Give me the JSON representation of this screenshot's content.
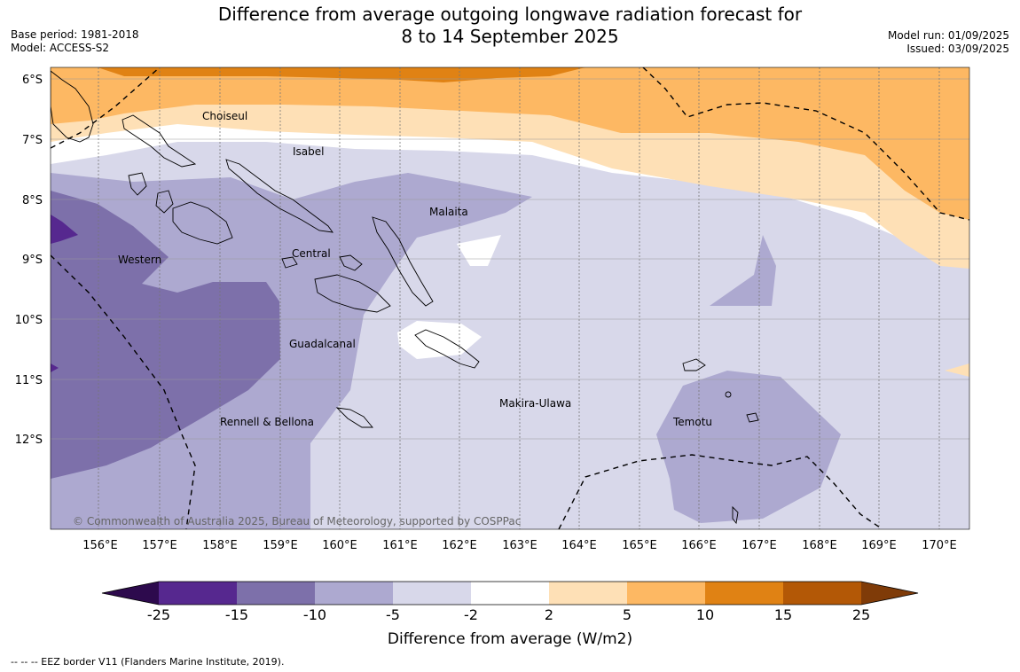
{
  "title_line1": "Difference from average outgoing longwave radiation forecast for",
  "title_line2": "8 to 14 September 2025",
  "base_period": "Base period: 1981-2018",
  "model": "Model: ACCESS-S2",
  "model_run": "Model run: 01/09/2025",
  "issued": "Issued: 03/09/2025",
  "copyright": "© Commonwealth of Australia 2025, Bureau of Meteorology, supported by COSPPac",
  "footnote": "--  --  -- EEZ border V11 (Flanders Marine Institute, 2019).",
  "lat_labels": [
    "6°S",
    "7°S",
    "8°S",
    "9°S",
    "10°S",
    "11°S",
    "12°S"
  ],
  "lon_labels": [
    "156°E",
    "157°E",
    "158°E",
    "159°E",
    "160°E",
    "161°E",
    "162°E",
    "163°E",
    "164°E",
    "165°E",
    "166°E",
    "167°E",
    "168°E",
    "169°E",
    "170°E"
  ],
  "provinces": [
    "Choiseul",
    "Isabel",
    "Malaita",
    "Western",
    "Central",
    "Guadalcanal",
    "Makira-Ulawa",
    "Rennell & Bellona",
    "Temotu"
  ],
  "colorbar": {
    "label": "Difference from average (W/m2)",
    "ticks": [
      "-25",
      "-15",
      "-10",
      "-5",
      "-2",
      "2",
      "5",
      "10",
      "15",
      "25"
    ],
    "colors": [
      "#56288f",
      "#7d70aa",
      "#ada9d0",
      "#d8d8ea",
      "#ffffff",
      "#fee0b6",
      "#fdb863",
      "#e08214",
      "#b35806"
    ],
    "under_color": "#2d0a4d",
    "over_color": "#7f3b08"
  },
  "colors": {
    "land_outline": "#000000",
    "grid": "#888888"
  }
}
